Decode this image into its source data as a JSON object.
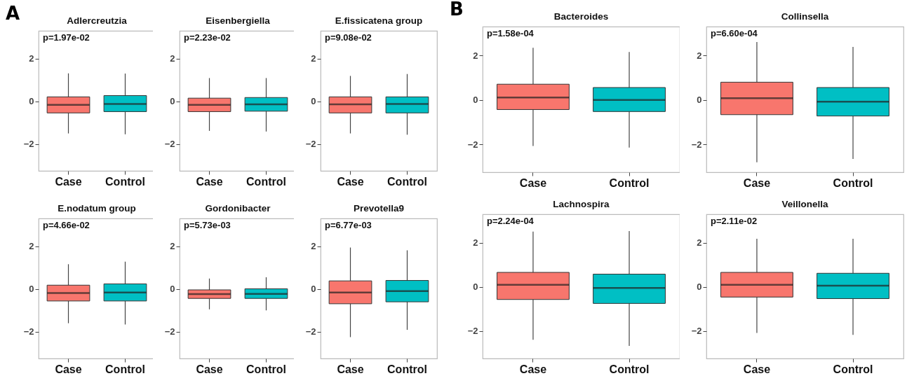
{
  "chart_data": [
    {
      "type": "box",
      "title": "Adlercreutzia",
      "annotations": [
        "A",
        "p=1.97e-02"
      ],
      "categories": [
        "Case",
        "Control"
      ],
      "colors": [
        "#f8766d",
        "#00bfc4"
      ],
      "ylim": [
        -3.25,
        3.3
      ],
      "yticks": [
        -2,
        0,
        2
      ],
      "grid": false,
      "boxes": [
        {
          "low": -1.5,
          "q1": -0.54,
          "median": -0.16,
          "q3": 0.21,
          "high": 1.31
        },
        {
          "low": -1.54,
          "q1": -0.48,
          "median": -0.12,
          "q3": 0.27,
          "high": 1.3
        }
      ]
    },
    {
      "type": "box",
      "title": "Eisenbergiella",
      "annotations": [
        "p=2.23e-02"
      ],
      "categories": [
        "Case",
        "Control"
      ],
      "colors": [
        "#f8766d",
        "#00bfc4"
      ],
      "ylim": [
        -3.25,
        3.3
      ],
      "yticks": [
        -2,
        0,
        2
      ],
      "grid": false,
      "boxes": [
        {
          "low": -1.38,
          "q1": -0.48,
          "median": -0.16,
          "q3": 0.15,
          "high": 1.09
        },
        {
          "low": -1.41,
          "q1": -0.46,
          "median": -0.14,
          "q3": 0.18,
          "high": 1.09
        }
      ]
    },
    {
      "type": "box",
      "title": "E.fissicatena group",
      "annotations": [
        "p=9.08e-02"
      ],
      "categories": [
        "Case",
        "Control"
      ],
      "colors": [
        "#f8766d",
        "#00bfc4"
      ],
      "ylim": [
        -3.25,
        3.3
      ],
      "yticks": [
        -2,
        0,
        2
      ],
      "grid": false,
      "boxes": [
        {
          "low": -1.5,
          "q1": -0.54,
          "median": -0.14,
          "q3": 0.21,
          "high": 1.19
        },
        {
          "low": -1.56,
          "q1": -0.54,
          "median": -0.12,
          "q3": 0.21,
          "high": 1.28
        }
      ]
    },
    {
      "type": "box",
      "title": "E.nodatum group",
      "annotations": [
        "p=4.66e-02"
      ],
      "categories": [
        "Case",
        "Control"
      ],
      "colors": [
        "#f8766d",
        "#00bfc4"
      ],
      "ylim": [
        -3.25,
        3.3
      ],
      "yticks": [
        -2,
        0,
        2
      ],
      "grid": false,
      "boxes": [
        {
          "low": -1.6,
          "q1": -0.56,
          "median": -0.19,
          "q3": 0.18,
          "high": 1.16
        },
        {
          "low": -1.66,
          "q1": -0.56,
          "median": -0.16,
          "q3": 0.24,
          "high": 1.28
        }
      ]
    },
    {
      "type": "box",
      "title": "Gordonibacter",
      "annotations": [
        "p=5.73e-03"
      ],
      "categories": [
        "Case",
        "Control"
      ],
      "colors": [
        "#f8766d",
        "#00bfc4"
      ],
      "ylim": [
        -3.25,
        3.3
      ],
      "yticks": [
        -2,
        0,
        2
      ],
      "grid": false,
      "boxes": [
        {
          "low": -0.95,
          "q1": -0.44,
          "median": -0.24,
          "q3": -0.04,
          "high": 0.49
        },
        {
          "low": -1.0,
          "q1": -0.44,
          "median": -0.23,
          "q3": 0.01,
          "high": 0.55
        }
      ]
    },
    {
      "type": "box",
      "title": "Prevotella9",
      "annotations": [
        "p=6.77e-03"
      ],
      "categories": [
        "Case",
        "Control"
      ],
      "colors": [
        "#f8766d",
        "#00bfc4"
      ],
      "ylim": [
        -3.25,
        3.3
      ],
      "yticks": [
        -2,
        0,
        2
      ],
      "grid": false,
      "boxes": [
        {
          "low": -2.25,
          "q1": -0.69,
          "median": -0.16,
          "q3": 0.38,
          "high": 1.94
        },
        {
          "low": -1.91,
          "q1": -0.6,
          "median": -0.1,
          "q3": 0.4,
          "high": 1.81
        }
      ]
    },
    {
      "type": "box",
      "title": "Bacteroides",
      "annotations": [
        "B",
        "p=1.58e-04"
      ],
      "categories": [
        "Case",
        "Control"
      ],
      "colors": [
        "#f8766d",
        "#00bfc4"
      ],
      "ylim": [
        -3.25,
        3.3
      ],
      "yticks": [
        -2,
        0,
        2
      ],
      "grid": false,
      "boxes": [
        {
          "low": -2.07,
          "q1": -0.43,
          "median": 0.11,
          "q3": 0.71,
          "high": 2.35
        },
        {
          "low": -2.14,
          "q1": -0.52,
          "median": 0,
          "q3": 0.56,
          "high": 2.16
        }
      ]
    },
    {
      "type": "box",
      "title": "Collinsella",
      "annotations": [
        "p=6.60e-04"
      ],
      "categories": [
        "Case",
        "Control"
      ],
      "colors": [
        "#f8766d",
        "#00bfc4"
      ],
      "ylim": [
        -3.25,
        3.3
      ],
      "yticks": [
        -2,
        0,
        2
      ],
      "grid": false,
      "boxes": [
        {
          "low": -2.8,
          "q1": -0.66,
          "median": 0.08,
          "q3": 0.8,
          "high": 2.61
        },
        {
          "low": -2.65,
          "q1": -0.72,
          "median": -0.08,
          "q3": 0.56,
          "high": 2.39
        }
      ]
    },
    {
      "type": "box",
      "title": "Lachnospira",
      "annotations": [
        "p=2.24e-04"
      ],
      "categories": [
        "Case",
        "Control"
      ],
      "colors": [
        "#f8766d",
        "#00bfc4"
      ],
      "ylim": [
        -3.25,
        3.3
      ],
      "yticks": [
        -2,
        0,
        2
      ],
      "grid": false,
      "boxes": [
        {
          "low": -2.4,
          "q1": -0.57,
          "median": 0.1,
          "q3": 0.66,
          "high": 2.51
        },
        {
          "low": -2.68,
          "q1": -0.75,
          "median": -0.05,
          "q3": 0.58,
          "high": 2.54
        }
      ]
    },
    {
      "type": "box",
      "title": "Veillonella",
      "annotations": [
        "p=2.11e-02"
      ],
      "categories": [
        "Case",
        "Control"
      ],
      "colors": [
        "#f8766d",
        "#00bfc4"
      ],
      "ylim": [
        -3.25,
        3.3
      ],
      "yticks": [
        -2,
        0,
        2
      ],
      "grid": false,
      "boxes": [
        {
          "low": -2.09,
          "q1": -0.46,
          "median": 0.1,
          "q3": 0.66,
          "high": 2.19
        },
        {
          "low": -2.18,
          "q1": -0.53,
          "median": 0.06,
          "q3": 0.62,
          "high": 2.19
        }
      ]
    }
  ]
}
